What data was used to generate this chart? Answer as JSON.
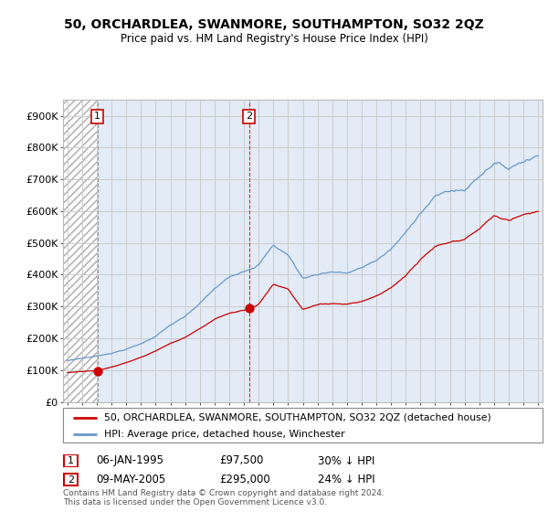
{
  "title": "50, ORCHARDLEA, SWANMORE, SOUTHAMPTON, SO32 2QZ",
  "subtitle": "Price paid vs. HM Land Registry's House Price Index (HPI)",
  "ylabel_ticks": [
    "£0",
    "£100K",
    "£200K",
    "£300K",
    "£400K",
    "£500K",
    "£600K",
    "£700K",
    "£800K",
    "£900K"
  ],
  "ytick_vals": [
    0,
    100000,
    200000,
    300000,
    400000,
    500000,
    600000,
    700000,
    800000,
    900000
  ],
  "ylim": [
    0,
    950000
  ],
  "xlim_start": 1992.7,
  "xlim_end": 2025.3,
  "sale1_year": 1995.03,
  "sale1_price": 97500,
  "sale2_year": 2005.35,
  "sale2_price": 295000,
  "legend_line1": "50, ORCHARDLEA, SWANMORE, SOUTHAMPTON, SO32 2QZ (detached house)",
  "legend_line2": "HPI: Average price, detached house, Winchester",
  "footer": "Contains HM Land Registry data © Crown copyright and database right 2024.\nThis data is licensed under the Open Government Licence v3.0.",
  "red_color": "#cc0000",
  "blue_color": "#6699cc",
  "hatch_color": "#aaaaaa",
  "bg_color": "#ddeeff",
  "grid_color": "#cccccc",
  "annotation_table_row1": [
    "1",
    "06-JAN-1995",
    "£97,500",
    "30% ↓ HPI"
  ],
  "annotation_table_row2": [
    "2",
    "09-MAY-2005",
    "£295,000",
    "24% ↓ HPI"
  ]
}
